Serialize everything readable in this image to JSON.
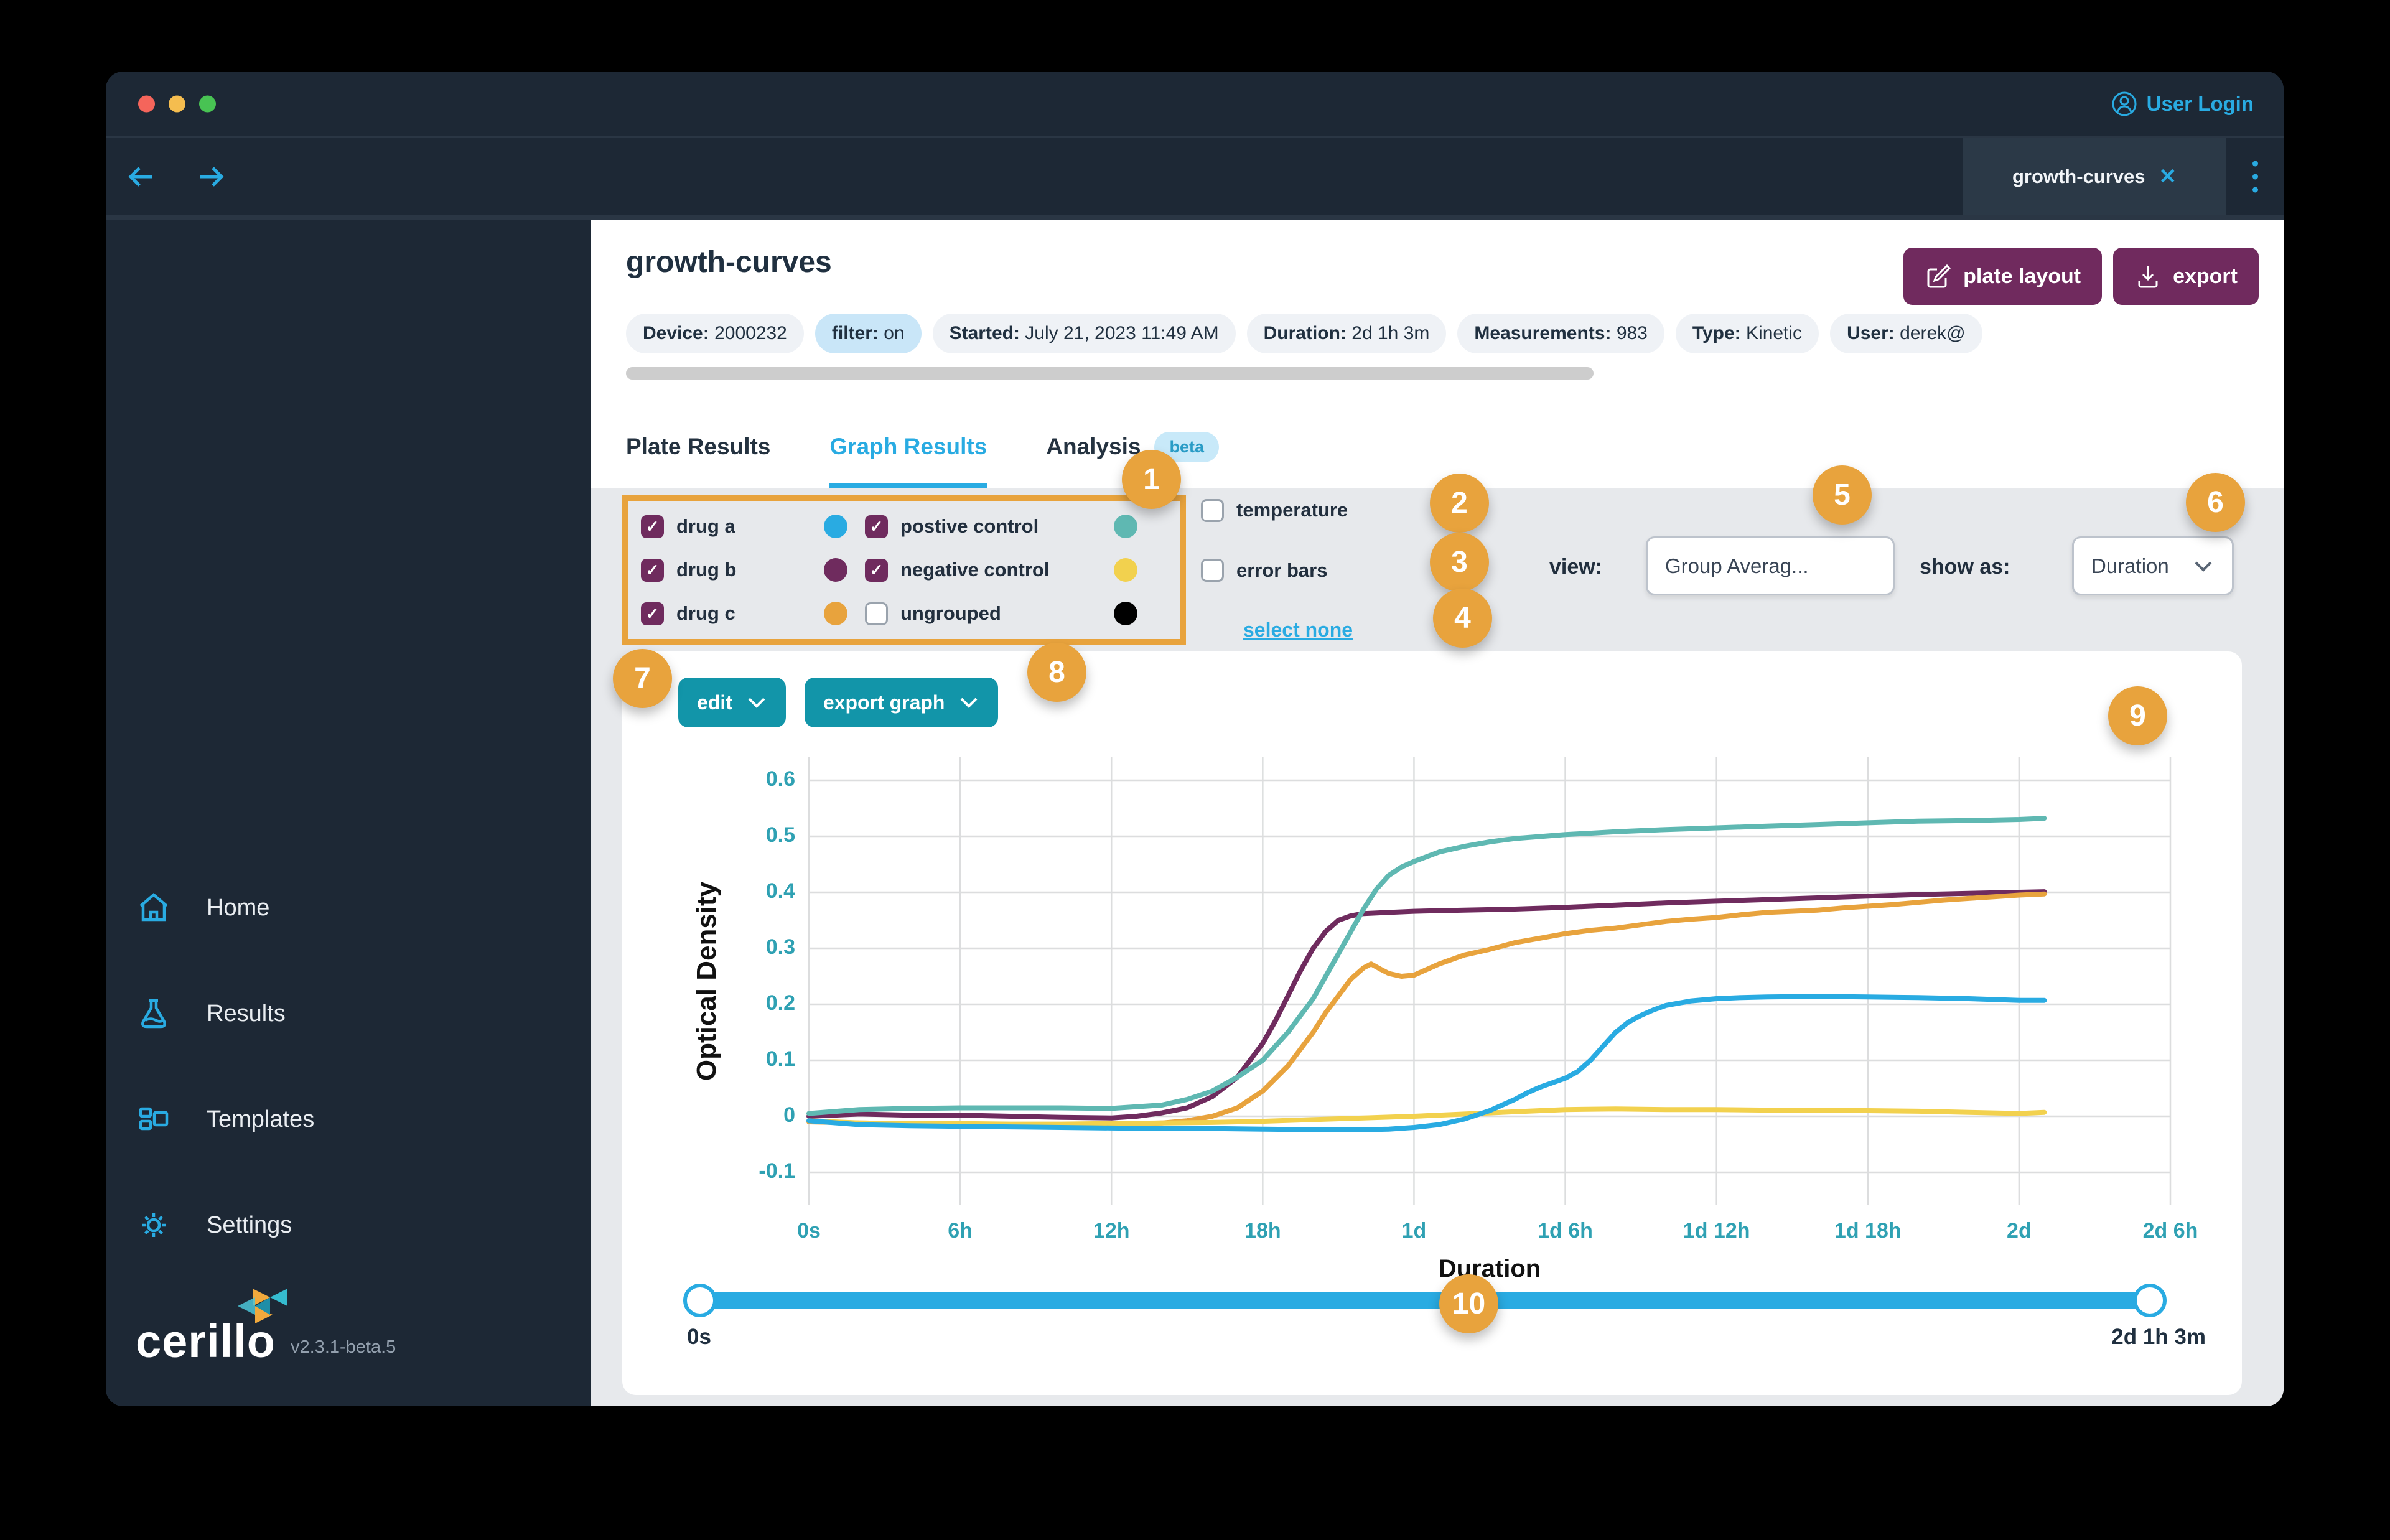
{
  "titlebar": {
    "user_login": "User Login"
  },
  "navbar": {
    "tab_label": "growth-curves",
    "close_glyph": "✕"
  },
  "header": {
    "title": "growth-curves",
    "buttons": {
      "plate_layout": "plate layout",
      "export": "export"
    },
    "chips": [
      {
        "label": "Device:",
        "value": "2000232",
        "variant": "default"
      },
      {
        "label": "filter:",
        "value": "on",
        "variant": "info"
      },
      {
        "label": "Started:",
        "value": "July 21, 2023 11:49 AM",
        "variant": "default"
      },
      {
        "label": "Duration:",
        "value": "2d 1h 3m",
        "variant": "default"
      },
      {
        "label": "Measurements:",
        "value": "983",
        "variant": "default"
      },
      {
        "label": "Type:",
        "value": "Kinetic",
        "variant": "default"
      },
      {
        "label": "User:",
        "value": "derek@",
        "variant": "default"
      }
    ]
  },
  "tabs": [
    {
      "label": "Plate Results"
    },
    {
      "label": "Graph Results"
    },
    {
      "label": "Analysis",
      "badge": "beta"
    }
  ],
  "legend": {
    "groups": [
      {
        "label": "drug a",
        "checked": true,
        "color": "#29ABE2"
      },
      {
        "label": "drug b",
        "checked": true,
        "color": "#6F2B5E"
      },
      {
        "label": "drug c",
        "checked": true,
        "color": "#E8A33D"
      },
      {
        "label": "postive control",
        "checked": true,
        "color": "#5FB8B2"
      },
      {
        "label": "negative control",
        "checked": true,
        "color": "#F2D14E"
      },
      {
        "label": "ungrouped",
        "checked": false,
        "color": "#000000"
      }
    ],
    "extras": [
      {
        "label": "temperature",
        "checked": false,
        "color": "#F4635A"
      },
      {
        "label": "error bars",
        "checked": false
      }
    ],
    "select_none": "select none"
  },
  "controls": {
    "view_label": "view:",
    "view_value": "Group Averag...",
    "show_as_label": "show as:",
    "show_as_value": "Duration"
  },
  "graph_buttons": {
    "edit": "edit",
    "export_graph": "export graph"
  },
  "chart_data": {
    "type": "line",
    "title": "",
    "xlabel": "Duration",
    "ylabel": "Optical Density",
    "x_unit": "hours",
    "xlim": [
      0,
      54
    ],
    "ylim": [
      -0.15,
      0.65
    ],
    "grid": true,
    "x_ticks": [
      {
        "h": 0,
        "label": "0s"
      },
      {
        "h": 6,
        "label": "6h"
      },
      {
        "h": 12,
        "label": "12h"
      },
      {
        "h": 18,
        "label": "18h"
      },
      {
        "h": 24,
        "label": "1d"
      },
      {
        "h": 30,
        "label": "1d 6h"
      },
      {
        "h": 36,
        "label": "1d 12h"
      },
      {
        "h": 42,
        "label": "1d 18h"
      },
      {
        "h": 48,
        "label": "2d"
      },
      {
        "h": 54,
        "label": "2d 6h"
      }
    ],
    "y_ticks": [
      {
        "v": 0.6,
        "label": "0.6"
      },
      {
        "v": 0.5,
        "label": "0.5"
      },
      {
        "v": 0.4,
        "label": "0.4"
      },
      {
        "v": 0.3,
        "label": "0.3"
      },
      {
        "v": 0.2,
        "label": "0.2"
      },
      {
        "v": 0.1,
        "label": "0.1"
      },
      {
        "v": 0,
        "label": "0"
      },
      {
        "v": -0.1,
        "label": "-0.1"
      }
    ],
    "series": [
      {
        "name": "drug b",
        "color": "#6F2B5E",
        "points": [
          [
            0,
            0
          ],
          [
            2,
            0.004
          ],
          [
            4,
            0.002
          ],
          [
            6,
            0.002
          ],
          [
            8,
            0
          ],
          [
            10,
            -0.002
          ],
          [
            12,
            -0.003
          ],
          [
            13,
            0
          ],
          [
            14,
            0.006
          ],
          [
            15,
            0.015
          ],
          [
            16,
            0.035
          ],
          [
            17,
            0.07
          ],
          [
            18,
            0.13
          ],
          [
            18.5,
            0.17
          ],
          [
            19,
            0.215
          ],
          [
            19.5,
            0.26
          ],
          [
            20,
            0.3
          ],
          [
            20.5,
            0.33
          ],
          [
            21,
            0.35
          ],
          [
            21.5,
            0.358
          ],
          [
            22,
            0.362
          ],
          [
            23,
            0.364
          ],
          [
            24,
            0.366
          ],
          [
            26,
            0.368
          ],
          [
            28,
            0.37
          ],
          [
            30,
            0.373
          ],
          [
            32,
            0.377
          ],
          [
            34,
            0.381
          ],
          [
            36,
            0.384
          ],
          [
            38,
            0.387
          ],
          [
            40,
            0.39
          ],
          [
            42,
            0.393
          ],
          [
            44,
            0.396
          ],
          [
            46,
            0.398
          ],
          [
            48,
            0.4
          ],
          [
            49,
            0.401
          ]
        ]
      },
      {
        "name": "postive control",
        "color": "#5FB8B2",
        "points": [
          [
            0,
            0.005
          ],
          [
            2,
            0.012
          ],
          [
            4,
            0.014
          ],
          [
            6,
            0.015
          ],
          [
            8,
            0.015
          ],
          [
            10,
            0.015
          ],
          [
            12,
            0.014
          ],
          [
            14,
            0.02
          ],
          [
            15,
            0.03
          ],
          [
            16,
            0.045
          ],
          [
            17,
            0.07
          ],
          [
            18,
            0.1
          ],
          [
            19,
            0.15
          ],
          [
            20,
            0.21
          ],
          [
            21,
            0.29
          ],
          [
            21.5,
            0.33
          ],
          [
            22,
            0.37
          ],
          [
            22.5,
            0.405
          ],
          [
            23,
            0.43
          ],
          [
            23.5,
            0.445
          ],
          [
            24,
            0.455
          ],
          [
            25,
            0.472
          ],
          [
            26,
            0.482
          ],
          [
            27,
            0.49
          ],
          [
            28,
            0.496
          ],
          [
            30,
            0.503
          ],
          [
            32,
            0.508
          ],
          [
            34,
            0.512
          ],
          [
            36,
            0.515
          ],
          [
            38,
            0.518
          ],
          [
            40,
            0.521
          ],
          [
            42,
            0.524
          ],
          [
            44,
            0.527
          ],
          [
            46,
            0.528
          ],
          [
            48,
            0.53
          ],
          [
            49,
            0.532
          ]
        ]
      },
      {
        "name": "drug c",
        "color": "#E8A33D",
        "points": [
          [
            0,
            -0.01
          ],
          [
            2,
            -0.012
          ],
          [
            4,
            -0.013
          ],
          [
            6,
            -0.014
          ],
          [
            8,
            -0.015
          ],
          [
            10,
            -0.015
          ],
          [
            12,
            -0.014
          ],
          [
            14,
            -0.012
          ],
          [
            15,
            -0.008
          ],
          [
            16,
            0
          ],
          [
            17,
            0.015
          ],
          [
            18,
            0.045
          ],
          [
            19,
            0.09
          ],
          [
            20,
            0.15
          ],
          [
            20.5,
            0.185
          ],
          [
            21,
            0.215
          ],
          [
            21.5,
            0.245
          ],
          [
            22,
            0.265
          ],
          [
            22.3,
            0.272
          ],
          [
            22.7,
            0.262
          ],
          [
            23,
            0.255
          ],
          [
            23.5,
            0.25
          ],
          [
            24,
            0.252
          ],
          [
            24.5,
            0.262
          ],
          [
            25,
            0.272
          ],
          [
            26,
            0.288
          ],
          [
            27,
            0.298
          ],
          [
            28,
            0.31
          ],
          [
            29,
            0.318
          ],
          [
            30,
            0.326
          ],
          [
            31,
            0.332
          ],
          [
            32,
            0.336
          ],
          [
            33,
            0.342
          ],
          [
            34,
            0.348
          ],
          [
            35,
            0.352
          ],
          [
            36,
            0.355
          ],
          [
            37,
            0.36
          ],
          [
            38,
            0.364
          ],
          [
            39,
            0.366
          ],
          [
            40,
            0.368
          ],
          [
            41,
            0.372
          ],
          [
            42,
            0.375
          ],
          [
            43,
            0.378
          ],
          [
            44,
            0.382
          ],
          [
            45,
            0.386
          ],
          [
            46,
            0.389
          ],
          [
            47,
            0.392
          ],
          [
            48,
            0.395
          ],
          [
            49,
            0.397
          ]
        ]
      },
      {
        "name": "negative control",
        "color": "#F2D14E",
        "points": [
          [
            0,
            -0.008
          ],
          [
            2,
            -0.012
          ],
          [
            4,
            -0.013
          ],
          [
            6,
            -0.013
          ],
          [
            8,
            -0.014
          ],
          [
            10,
            -0.014
          ],
          [
            12,
            -0.013
          ],
          [
            14,
            -0.012
          ],
          [
            16,
            -0.011
          ],
          [
            18,
            -0.009
          ],
          [
            20,
            -0.006
          ],
          [
            22,
            -0.003
          ],
          [
            24,
            0
          ],
          [
            26,
            0.004
          ],
          [
            28,
            0.008
          ],
          [
            29,
            0.01
          ],
          [
            30,
            0.012
          ],
          [
            32,
            0.013
          ],
          [
            34,
            0.012
          ],
          [
            36,
            0.012
          ],
          [
            38,
            0.011
          ],
          [
            40,
            0.011
          ],
          [
            42,
            0.01
          ],
          [
            44,
            0.009
          ],
          [
            46,
            0.007
          ],
          [
            48,
            0.005
          ],
          [
            49,
            0.007
          ]
        ]
      },
      {
        "name": "drug a",
        "color": "#29ABE2",
        "points": [
          [
            0,
            -0.008
          ],
          [
            2,
            -0.015
          ],
          [
            4,
            -0.017
          ],
          [
            6,
            -0.018
          ],
          [
            8,
            -0.019
          ],
          [
            10,
            -0.02
          ],
          [
            12,
            -0.021
          ],
          [
            14,
            -0.022
          ],
          [
            16,
            -0.022
          ],
          [
            18,
            -0.023
          ],
          [
            20,
            -0.024
          ],
          [
            22,
            -0.024
          ],
          [
            23,
            -0.023
          ],
          [
            24,
            -0.02
          ],
          [
            25,
            -0.015
          ],
          [
            26,
            -0.005
          ],
          [
            27,
            0.01
          ],
          [
            28,
            0.03
          ],
          [
            28.5,
            0.042
          ],
          [
            29,
            0.052
          ],
          [
            29.5,
            0.06
          ],
          [
            30,
            0.068
          ],
          [
            30.5,
            0.08
          ],
          [
            31,
            0.1
          ],
          [
            31.5,
            0.125
          ],
          [
            32,
            0.15
          ],
          [
            32.5,
            0.168
          ],
          [
            33,
            0.18
          ],
          [
            33.5,
            0.19
          ],
          [
            34,
            0.198
          ],
          [
            35,
            0.206
          ],
          [
            36,
            0.21
          ],
          [
            37,
            0.212
          ],
          [
            38,
            0.213
          ],
          [
            40,
            0.214
          ],
          [
            42,
            0.213
          ],
          [
            44,
            0.212
          ],
          [
            46,
            0.21
          ],
          [
            48,
            0.207
          ],
          [
            49,
            0.207
          ]
        ]
      }
    ],
    "legend_position": "none"
  },
  "slider": {
    "min_label": "0s",
    "max_label": "2d 1h 3m"
  },
  "sidebar": {
    "items": [
      {
        "label": "Home"
      },
      {
        "label": "Results"
      },
      {
        "label": "Templates"
      },
      {
        "label": "Settings"
      }
    ],
    "logo": "cerillo",
    "version": "v2.3.1-beta.5"
  },
  "annotations": {
    "numbers": [
      "1",
      "2",
      "3",
      "4",
      "5",
      "6",
      "7",
      "8",
      "9",
      "10"
    ]
  },
  "colors": {
    "accent_cyan": "#29ABE2",
    "accent_teal_btn": "#1295A9",
    "purple": "#702A5E",
    "callout_orange": "#E8A33D",
    "dark_bg": "#1D2835",
    "gray_panel": "#E7E9EC",
    "tick_teal": "#2FA1B3",
    "traffic_red": "#F5655B",
    "traffic_yellow": "#F5BD4F",
    "traffic_green": "#48C353"
  }
}
